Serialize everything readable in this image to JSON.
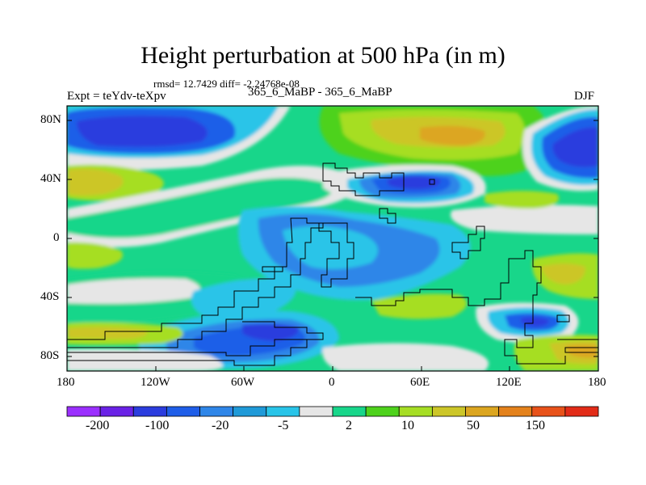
{
  "title": "Height perturbation at 500 hPa (in m)",
  "stats_line": "rmsd= 12.7429 diff= -2.24768e-08",
  "left_label": "Expt = teYdv-teXpv",
  "center_label": "365_6_MaBP - 365_6_MaBP",
  "right_label": "DJF",
  "y_ticks": [
    "80N",
    "40N",
    "0",
    "40S",
    "80S"
  ],
  "x_ticks": [
    "180",
    "120W",
    "60W",
    "0",
    "60E",
    "120E",
    "180"
  ],
  "colorbar": {
    "colors": [
      "#9b30ff",
      "#6a22e6",
      "#2b3dde",
      "#1f5ee8",
      "#2f86e8",
      "#1f9ad8",
      "#29c4e8",
      "#e6e6e6",
      "#18d68a",
      "#4ed21c",
      "#a6de24",
      "#ccc628",
      "#dca620",
      "#e4821c",
      "#e8521a",
      "#e22c18"
    ],
    "labels": [
      "-200",
      "-100",
      "-20",
      "-5",
      "2",
      "10",
      "50",
      "150"
    ]
  },
  "colors": {
    "background_band": "#1f9ad8",
    "land_outline": "#000000"
  }
}
